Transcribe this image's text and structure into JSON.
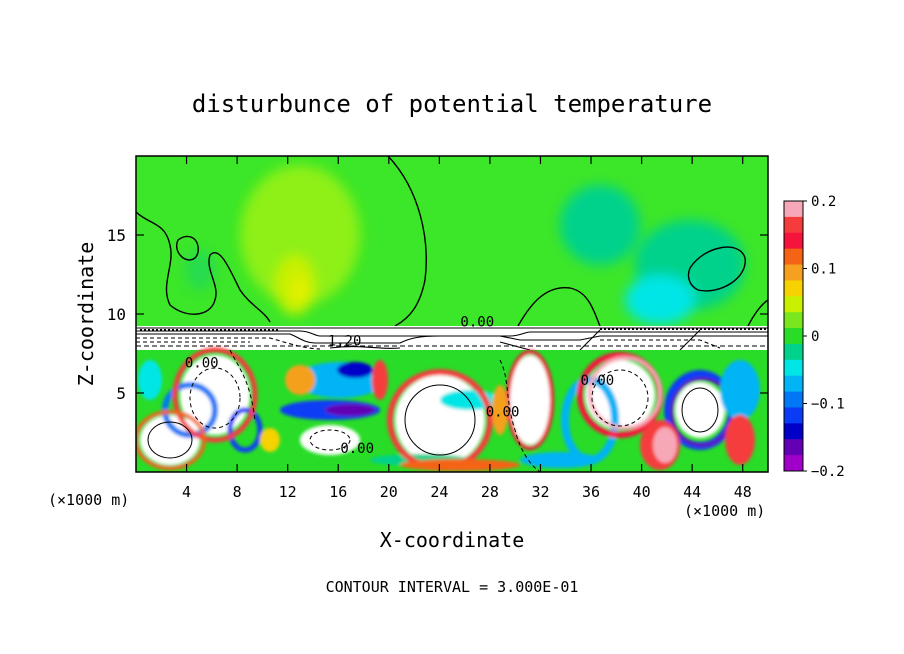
{
  "chart_data": {
    "type": "heatmap",
    "title": "disturbunce of potential temperature",
    "xlabel": "X-coordinate",
    "ylabel": "Z-coordinate",
    "x_unit_left": "(×1000 m)",
    "x_unit_right": "(×1000 m)",
    "xlim": [
      0,
      50
    ],
    "ylim": [
      0,
      20
    ],
    "x_ticks": [
      4,
      8,
      12,
      16,
      20,
      24,
      28,
      32,
      36,
      40,
      44,
      48
    ],
    "y_ticks": [
      5,
      10,
      15
    ],
    "colorbar": {
      "vmin": -0.2,
      "vmax": 0.2,
      "tick_values": [
        0.2,
        0.1,
        0,
        -0.1,
        -0.2
      ],
      "tick_labels": [
        "0.2",
        "0.1",
        "0",
        "−0.1",
        "−0.2"
      ],
      "colors": [
        "#f7a8b8",
        "#f53c3c",
        "#f5143c",
        "#f56414",
        "#f5a01e",
        "#f5d200",
        "#c8f000",
        "#7ae61e",
        "#28dc28",
        "#00d28c",
        "#00e6e6",
        "#00b4f5",
        "#0078f5",
        "#0a3cf5",
        "#0000c8",
        "#6400b4",
        "#a000c8"
      ]
    },
    "contour_labels": [
      {
        "text": "0.00",
        "x": 5.2,
        "z": 6.6
      },
      {
        "text": "1.20",
        "x": 16.5,
        "z": 8.0
      },
      {
        "text": "0.00",
        "x": 27.0,
        "z": 9.2
      },
      {
        "text": "0.00",
        "x": 17.5,
        "z": 1.2
      },
      {
        "text": "0.00",
        "x": 29.0,
        "z": 3.5
      },
      {
        "text": "0.00",
        "x": 36.5,
        "z": 5.5
      }
    ],
    "footer": "CONTOUR INTERVAL = 3.000E-01",
    "grid": false
  }
}
